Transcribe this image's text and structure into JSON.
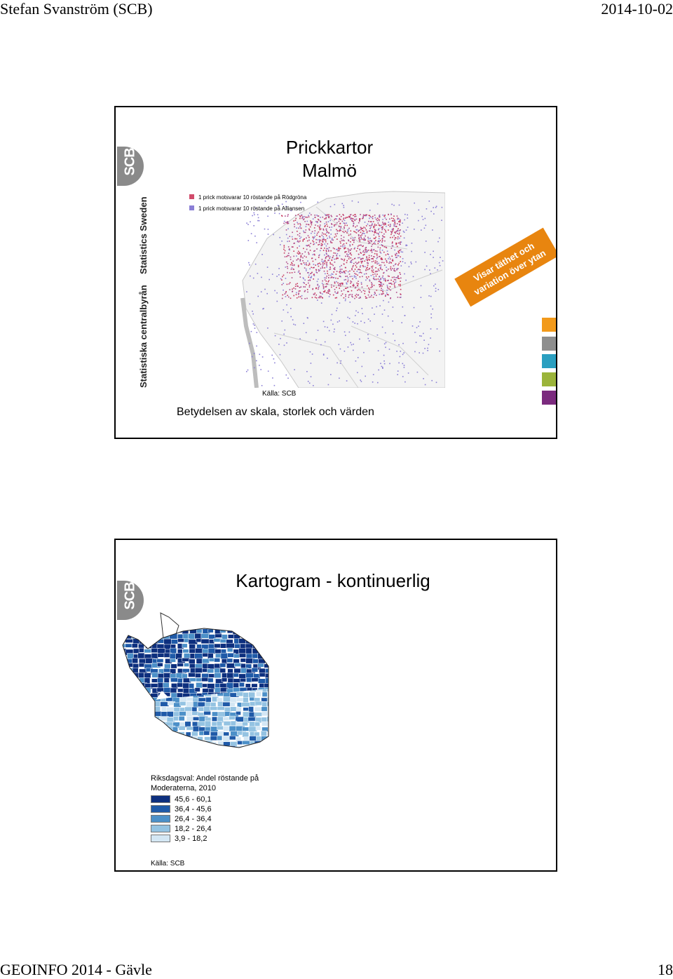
{
  "header": {
    "author": "Stefan Svanström (SCB)",
    "date": "2014-10-02"
  },
  "footer": {
    "event": "GEOINFO 2014 - Gävle",
    "page": "18"
  },
  "slide1": {
    "logo": "SCB",
    "brand_name": "Statistiska centralbyrån",
    "brand_name_en": "Statistics Sweden",
    "title_line1": "Prickkartor",
    "title_line2": "Malmö",
    "legend_red": "1 prick motsvarar 10 röstande på Rödgröna",
    "legend_blue": "1 prick motsvarar 10 röstande på Alliansen",
    "callout_line1": "Visar täthet och",
    "callout_line2": "variation över ytan",
    "source": "Källa: SCB",
    "caption": "Betydelsen av skala, storlek och värden",
    "colors": {
      "callout": "#e8850f",
      "sq1": "#f29a1b",
      "sq2": "#8e8e8e",
      "sq3": "#2a9fc0",
      "sq4": "#9bb43a",
      "sq5": "#7b2a7e"
    }
  },
  "slide2": {
    "logo": "SCB",
    "title": "Kartogram - kontinuerlig",
    "legend_title_line1": "Riksdagsval: Andel röstande på",
    "legend_title_line2": "Moderaterna, 2010",
    "legend": [
      {
        "label": "45,6 - 60,1",
        "color": "#0d2f7e"
      },
      {
        "label": "36,4 - 45,6",
        "color": "#1f5aa8"
      },
      {
        "label": "26,4 - 36,4",
        "color": "#4c90c8"
      },
      {
        "label": "18,2 - 26,4",
        "color": "#94c3e2"
      },
      {
        "label": "3,9 - 18,2",
        "color": "#d4e7f4"
      }
    ],
    "source": "Källa: SCB"
  }
}
